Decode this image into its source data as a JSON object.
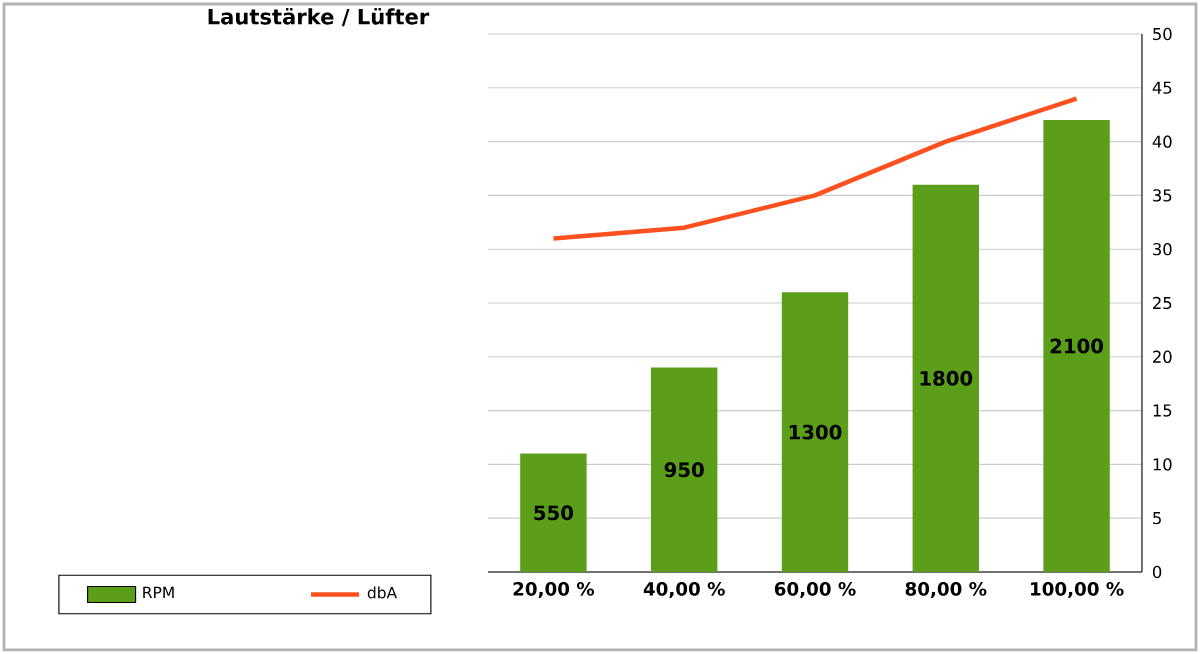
{
  "chart_data": {
    "type": "bar",
    "title": "Lautstärke / Lüfter",
    "categories": [
      "20,00 %",
      "40,00 %",
      "60,00 %",
      "80,00 %",
      "100,00 %"
    ],
    "series": [
      {
        "name": "RPM",
        "axis": "y2",
        "color": "#5a9e1a",
        "values": [
          550,
          950,
          1300,
          1800,
          2100
        ],
        "value_labels": [
          "550",
          "950",
          "1300",
          "1800",
          "2100"
        ]
      },
      {
        "name": "dbA",
        "type": "line",
        "axis": "y",
        "color": "#ff5020",
        "values": [
          31,
          32,
          35,
          40,
          44
        ]
      }
    ],
    "ylim": [
      0,
      50
    ],
    "yticks": [
      0,
      5,
      10,
      15,
      20,
      25,
      30,
      35,
      40,
      45,
      50
    ],
    "y2lim": [
      0,
      2500
    ],
    "grid": "y",
    "legend": "bottom left",
    "marker": "none"
  }
}
